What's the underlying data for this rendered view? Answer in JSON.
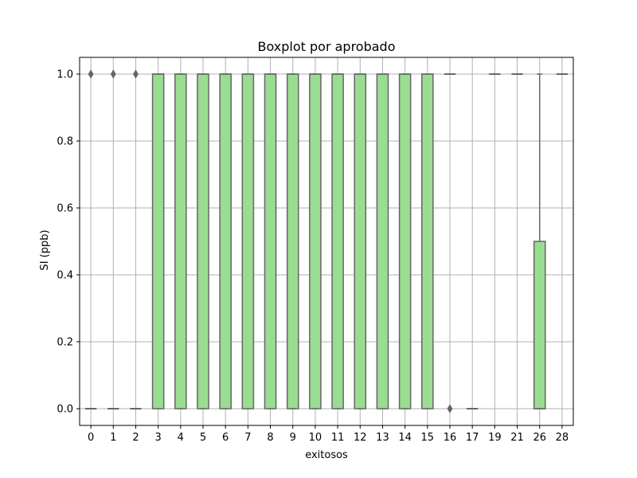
{
  "chart_data": {
    "type": "boxplot",
    "title": "Boxplot por aprobado",
    "xlabel": "exitosos",
    "ylabel": "SI (ppb)",
    "ylim": [
      -0.05,
      1.05
    ],
    "yticks": [
      0.0,
      0.2,
      0.4,
      0.6,
      0.8,
      1.0
    ],
    "ytick_labels": [
      "0.0",
      "0.2",
      "0.4",
      "0.6",
      "0.8",
      "1.0"
    ],
    "grid": true,
    "box_color": "#99dd91",
    "edge_color": "#666666",
    "categories": [
      "0",
      "1",
      "2",
      "3",
      "4",
      "5",
      "6",
      "7",
      "8",
      "9",
      "10",
      "11",
      "12",
      "13",
      "14",
      "15",
      "16",
      "17",
      "19",
      "21",
      "26",
      "28"
    ],
    "boxes": [
      {
        "category": "0",
        "whislo": 0,
        "q1": 0,
        "med": 0,
        "q3": 0,
        "whishi": 0,
        "fliers": [
          1
        ]
      },
      {
        "category": "1",
        "whislo": 0,
        "q1": 0,
        "med": 0,
        "q3": 0,
        "whishi": 0,
        "fliers": [
          1
        ]
      },
      {
        "category": "2",
        "whislo": 0,
        "q1": 0,
        "med": 0,
        "q3": 0,
        "whishi": 0,
        "fliers": [
          1
        ]
      },
      {
        "category": "3",
        "whislo": 0,
        "q1": 0,
        "med": 1,
        "q3": 1,
        "whishi": 1,
        "fliers": []
      },
      {
        "category": "4",
        "whislo": 0,
        "q1": 0,
        "med": 1,
        "q3": 1,
        "whishi": 1,
        "fliers": []
      },
      {
        "category": "5",
        "whislo": 0,
        "q1": 0,
        "med": 1,
        "q3": 1,
        "whishi": 1,
        "fliers": []
      },
      {
        "category": "6",
        "whislo": 0,
        "q1": 0,
        "med": 1,
        "q3": 1,
        "whishi": 1,
        "fliers": []
      },
      {
        "category": "7",
        "whislo": 0,
        "q1": 0,
        "med": 1,
        "q3": 1,
        "whishi": 1,
        "fliers": []
      },
      {
        "category": "8",
        "whislo": 0,
        "q1": 0,
        "med": 1,
        "q3": 1,
        "whishi": 1,
        "fliers": []
      },
      {
        "category": "9",
        "whislo": 0,
        "q1": 0,
        "med": 1,
        "q3": 1,
        "whishi": 1,
        "fliers": []
      },
      {
        "category": "10",
        "whislo": 0,
        "q1": 0,
        "med": 1,
        "q3": 1,
        "whishi": 1,
        "fliers": []
      },
      {
        "category": "11",
        "whislo": 0,
        "q1": 0,
        "med": 1,
        "q3": 1,
        "whishi": 1,
        "fliers": []
      },
      {
        "category": "12",
        "whislo": 0,
        "q1": 0,
        "med": 1,
        "q3": 1,
        "whishi": 1,
        "fliers": []
      },
      {
        "category": "13",
        "whislo": 0,
        "q1": 0,
        "med": 1,
        "q3": 1,
        "whishi": 1,
        "fliers": []
      },
      {
        "category": "14",
        "whislo": 0,
        "q1": 0,
        "med": 1,
        "q3": 1,
        "whishi": 1,
        "fliers": []
      },
      {
        "category": "15",
        "whislo": 0,
        "q1": 0,
        "med": 1,
        "q3": 1,
        "whishi": 1,
        "fliers": []
      },
      {
        "category": "16",
        "whislo": 1,
        "q1": 1,
        "med": 1,
        "q3": 1,
        "whishi": 1,
        "fliers": [
          0
        ]
      },
      {
        "category": "17",
        "whislo": 0,
        "q1": 0,
        "med": 0,
        "q3": 0,
        "whishi": 0,
        "fliers": []
      },
      {
        "category": "19",
        "whislo": 1,
        "q1": 1,
        "med": 1,
        "q3": 1,
        "whishi": 1,
        "fliers": []
      },
      {
        "category": "21",
        "whislo": 1,
        "q1": 1,
        "med": 1,
        "q3": 1,
        "whishi": 1,
        "fliers": []
      },
      {
        "category": "26",
        "whislo": 0,
        "q1": 0,
        "med": 0,
        "q3": 0.5,
        "whishi": 1,
        "fliers": []
      },
      {
        "category": "28",
        "whislo": 1,
        "q1": 1,
        "med": 1,
        "q3": 1,
        "whishi": 1,
        "fliers": []
      }
    ]
  }
}
